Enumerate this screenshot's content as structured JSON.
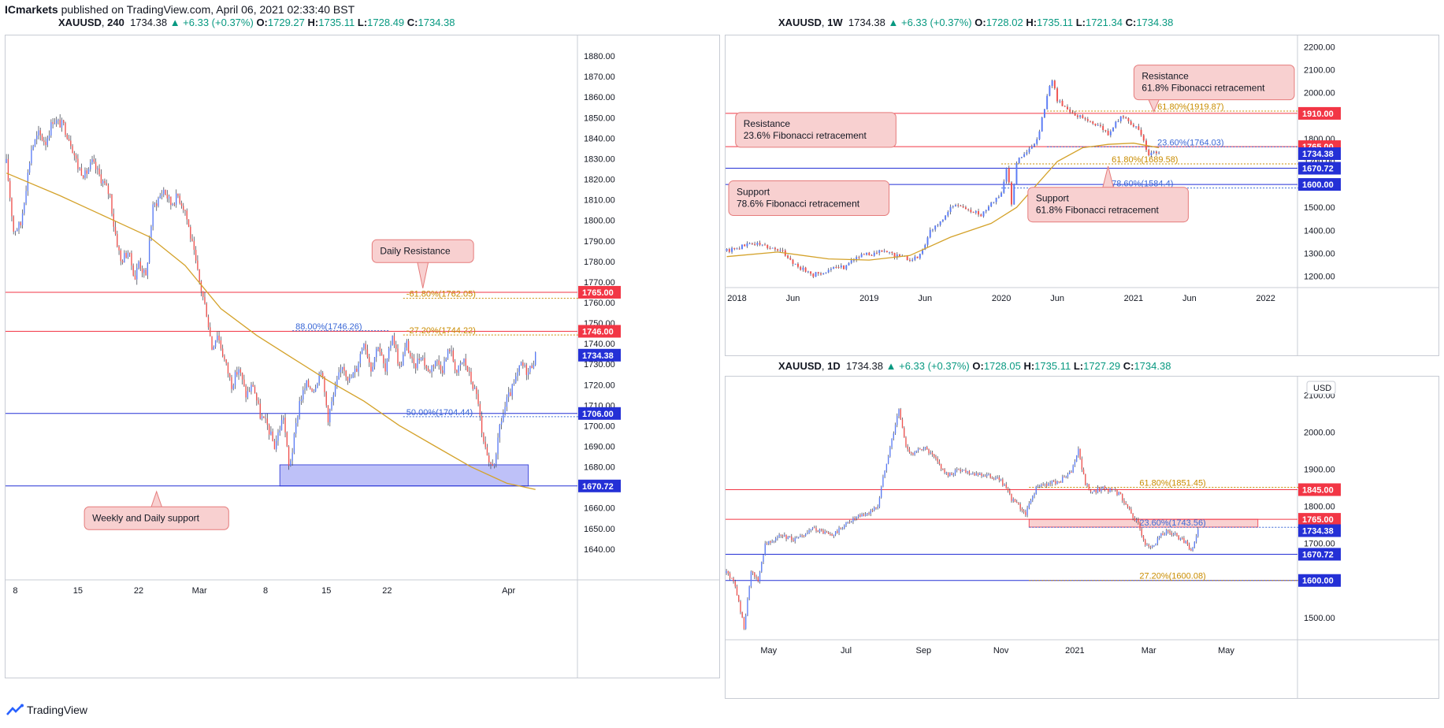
{
  "header": {
    "author": "ICmarkets",
    "text": " published on TradingView.com, April 06, 2021 02:33:40 BST"
  },
  "brand": {
    "name": "TradingView"
  },
  "colors": {
    "up": "#5b7cf5",
    "down": "#ef5350",
    "resistance": "#f23645",
    "support": "#2430d6",
    "ma": "#d4a22a",
    "fib_gold": "#c98c00",
    "fib_blue": "#3967d6",
    "callout_bg": "#f8d0d0",
    "callout_border": "#e57b7b",
    "zone": "#b3b7f7",
    "zone_red": "#f9c9c9",
    "last_price_bg": "#2430d6"
  },
  "chart_data": [
    {
      "id": "left",
      "type": "candlestick",
      "symbol": "XAUUSD",
      "timeframe": "240",
      "last": "1734.38",
      "change": "▲ +6.33 (+0.37%)",
      "ohlc": {
        "o": "1729.27",
        "h": "1735.11",
        "l": "1728.49",
        "c": "1734.38"
      },
      "ylim": [
        1625,
        1890
      ],
      "y_ticks": [
        "1880.00",
        "1870.00",
        "1860.00",
        "1850.00",
        "1840.00",
        "1830.00",
        "1820.00",
        "1810.00",
        "1800.00",
        "1790.00",
        "1780.00",
        "1770.00",
        "1760.00",
        "1750.00",
        "1740.00",
        "1730.00",
        "1720.00",
        "1710.00",
        "1700.00",
        "1690.00",
        "1680.00",
        "1670.00",
        "1660.00",
        "1650.00",
        "1640.00"
      ],
      "x_ticks": [
        {
          "label": "8",
          "i": 5
        },
        {
          "label": "15",
          "i": 40
        },
        {
          "label": "22",
          "i": 74
        },
        {
          "label": "Mar",
          "i": 108
        },
        {
          "label": "8",
          "i": 145
        },
        {
          "label": "15",
          "i": 179
        },
        {
          "label": "22",
          "i": 213
        },
        {
          "label": "Apr",
          "i": 281
        }
      ],
      "n_slots": 320,
      "path": [
        [
          0,
          1828
        ],
        [
          4,
          1795
        ],
        [
          8,
          1798
        ],
        [
          14,
          1835
        ],
        [
          18,
          1842
        ],
        [
          22,
          1838
        ],
        [
          26,
          1849
        ],
        [
          32,
          1846
        ],
        [
          36,
          1838
        ],
        [
          40,
          1826
        ],
        [
          44,
          1822
        ],
        [
          48,
          1828
        ],
        [
          52,
          1822
        ],
        [
          58,
          1812
        ],
        [
          60,
          1798
        ],
        [
          64,
          1780
        ],
        [
          68,
          1785
        ],
        [
          72,
          1772
        ],
        [
          74,
          1780
        ],
        [
          78,
          1772
        ],
        [
          80,
          1790
        ],
        [
          82,
          1806
        ],
        [
          88,
          1815
        ],
        [
          92,
          1808
        ],
        [
          96,
          1812
        ],
        [
          100,
          1805
        ],
        [
          104,
          1788
        ],
        [
          108,
          1770
        ],
        [
          112,
          1755
        ],
        [
          115,
          1738
        ],
        [
          118,
          1745
        ],
        [
          122,
          1732
        ],
        [
          126,
          1720
        ],
        [
          130,
          1728
        ],
        [
          134,
          1715
        ],
        [
          138,
          1720
        ],
        [
          142,
          1705
        ],
        [
          146,
          1700
        ],
        [
          150,
          1690
        ],
        [
          155,
          1705
        ],
        [
          158,
          1680
        ],
        [
          160,
          1688
        ],
        [
          164,
          1712
        ],
        [
          168,
          1720
        ],
        [
          172,
          1718
        ],
        [
          176,
          1728
        ],
        [
          180,
          1704
        ],
        [
          184,
          1718
        ],
        [
          188,
          1730
        ],
        [
          192,
          1722
        ],
        [
          196,
          1728
        ],
        [
          200,
          1742
        ],
        [
          204,
          1728
        ],
        [
          208,
          1740
        ],
        [
          212,
          1726
        ],
        [
          216,
          1745
        ],
        [
          220,
          1728
        ],
        [
          224,
          1740
        ],
        [
          228,
          1728
        ],
        [
          232,
          1735
        ],
        [
          236,
          1726
        ],
        [
          240,
          1732
        ],
        [
          244,
          1728
        ],
        [
          248,
          1738
        ],
        [
          252,
          1726
        ],
        [
          256,
          1732
        ],
        [
          260,
          1722
        ],
        [
          264,
          1712
        ],
        [
          266,
          1695
        ],
        [
          270,
          1680
        ],
        [
          274,
          1684
        ],
        [
          276,
          1700
        ],
        [
          280,
          1712
        ],
        [
          284,
          1720
        ],
        [
          288,
          1730
        ],
        [
          292,
          1726
        ],
        [
          296,
          1734
        ]
      ],
      "hlines": [
        {
          "price": 1765.0,
          "label": "1765.00",
          "kind": "resistance"
        },
        {
          "price": 1746.0,
          "label": "1746.00",
          "kind": "resistance"
        },
        {
          "price": 1706.0,
          "label": "1706.00",
          "kind": "support"
        },
        {
          "price": 1670.72,
          "label": "1670.72",
          "kind": "support"
        }
      ],
      "last_label": "1734.38",
      "fibs": [
        {
          "price": 1762.05,
          "text": "-61.80%(1762.05)",
          "color": "gold",
          "i0": 222,
          "i1": 320
        },
        {
          "price": 1746.26,
          "text": "88.00%(1746.26)",
          "color": "blue",
          "i0": 160,
          "i1": 214
        },
        {
          "price": 1744.22,
          "text": "-27.20%(1744.22)",
          "color": "gold",
          "i0": 222,
          "i1": 320
        },
        {
          "price": 1704.44,
          "text": "50.00%(1704.44)",
          "color": "blue",
          "i0": 222,
          "i1": 320
        }
      ],
      "ma": [
        [
          0,
          1823
        ],
        [
          30,
          1812
        ],
        [
          60,
          1800
        ],
        [
          80,
          1792
        ],
        [
          100,
          1778
        ],
        [
          120,
          1757
        ],
        [
          140,
          1744
        ],
        [
          160,
          1733
        ],
        [
          180,
          1722
        ],
        [
          200,
          1712
        ],
        [
          220,
          1700
        ],
        [
          240,
          1690
        ],
        [
          260,
          1680
        ],
        [
          280,
          1672
        ],
        [
          296,
          1669
        ]
      ],
      "zones": [
        {
          "i0": 153,
          "i1": 292,
          "p0": 1681,
          "p1": 1670.72,
          "kind": "blue"
        }
      ],
      "callouts": [
        {
          "text": "Daily Resistance",
          "i": 233,
          "price": 1785,
          "tip_price": 1767,
          "dir": "down"
        },
        {
          "text": "Weekly and Daily support",
          "i": 84,
          "price": 1655,
          "tip_price": 1668,
          "dir": "up"
        }
      ]
    },
    {
      "id": "top-right",
      "type": "candlestick",
      "symbol": "XAUUSD",
      "timeframe": "1W",
      "last": "1734.38",
      "change": "▲ +6.33 (+0.37%)",
      "ohlc": {
        "o": "1728.02",
        "h": "1735.11",
        "l": "1721.34",
        "c": "1734.38"
      },
      "ylim": [
        1150,
        2250
      ],
      "y_ticks": [
        "2200.00",
        "2100.00",
        "2000.00",
        "1900.00",
        "1800.00",
        "1700.00",
        "1600.00",
        "1500.00",
        "1400.00",
        "1300.00",
        "1200.00"
      ],
      "x_ticks": [
        {
          "label": "2018",
          "i": 4
        },
        {
          "label": "Jun",
          "i": 26
        },
        {
          "label": "2019",
          "i": 56
        },
        {
          "label": "Jun",
          "i": 78
        },
        {
          "label": "2020",
          "i": 108
        },
        {
          "label": "Jun",
          "i": 130
        },
        {
          "label": "2021",
          "i": 160
        },
        {
          "label": "Jun",
          "i": 182
        },
        {
          "label": "2022",
          "i": 212
        }
      ],
      "n_slots": 225,
      "path": [
        [
          0,
          1310
        ],
        [
          6,
          1330
        ],
        [
          10,
          1345
        ],
        [
          16,
          1330
        ],
        [
          22,
          1305
        ],
        [
          28,
          1240
        ],
        [
          34,
          1205
        ],
        [
          40,
          1225
        ],
        [
          46,
          1240
        ],
        [
          50,
          1280
        ],
        [
          56,
          1295
        ],
        [
          62,
          1310
        ],
        [
          66,
          1290
        ],
        [
          72,
          1275
        ],
        [
          76,
          1290
        ],
        [
          80,
          1400
        ],
        [
          84,
          1430
        ],
        [
          88,
          1500
        ],
        [
          92,
          1510
        ],
        [
          96,
          1480
        ],
        [
          100,
          1470
        ],
        [
          104,
          1520
        ],
        [
          108,
          1560
        ],
        [
          110,
          1680
        ],
        [
          112,
          1520
        ],
        [
          114,
          1700
        ],
        [
          118,
          1740
        ],
        [
          122,
          1790
        ],
        [
          126,
          1980
        ],
        [
          128,
          2060
        ],
        [
          130,
          1970
        ],
        [
          134,
          1930
        ],
        [
          138,
          1900
        ],
        [
          142,
          1880
        ],
        [
          146,
          1860
        ],
        [
          150,
          1820
        ],
        [
          154,
          1880
        ],
        [
          156,
          1900
        ],
        [
          160,
          1860
        ],
        [
          162,
          1830
        ],
        [
          164,
          1800
        ],
        [
          166,
          1720
        ],
        [
          168,
          1740
        ],
        [
          170,
          1734
        ]
      ],
      "hlines": [
        {
          "price": 1910.0,
          "label": "1910.00",
          "kind": "resistance"
        },
        {
          "price": 1765.0,
          "label": "1765.00",
          "kind": "resistance"
        },
        {
          "price": 1670.72,
          "label": "1670.72",
          "kind": "support"
        },
        {
          "price": 1600.0,
          "label": "1600.00",
          "kind": "support"
        }
      ],
      "last_label": "1734.38",
      "fibs": [
        {
          "price": 1919.87,
          "text": "61.80%(1919.87)",
          "color": "gold",
          "i0": 126,
          "i1": 225
        },
        {
          "price": 1764.03,
          "text": "23.60%(1764.03)",
          "color": "blue",
          "i0": 126,
          "i1": 225
        },
        {
          "price": 1689.58,
          "text": "61.80%(1689.58)",
          "color": "gold",
          "i0": 108,
          "i1": 225
        },
        {
          "price": 1584.4,
          "text": "78.60%(1584.4)",
          "color": "blue",
          "i0": 108,
          "i1": 225
        }
      ],
      "ma": [
        [
          0,
          1285
        ],
        [
          20,
          1305
        ],
        [
          40,
          1275
        ],
        [
          56,
          1270
        ],
        [
          72,
          1290
        ],
        [
          88,
          1370
        ],
        [
          104,
          1430
        ],
        [
          114,
          1500
        ],
        [
          122,
          1600
        ],
        [
          130,
          1700
        ],
        [
          140,
          1760
        ],
        [
          150,
          1775
        ],
        [
          160,
          1780
        ],
        [
          170,
          1760
        ]
      ],
      "zones": [],
      "callouts": [
        {
          "text": "Resistance|61.8% Fibonacci retracement",
          "i": 196,
          "price": 2045,
          "tip_price": 1918,
          "tip_i": 168,
          "dir": "down-left"
        },
        {
          "text": "Resistance|23.6% Fibonacci retracement",
          "i": 35,
          "price": 1838,
          "tip_price": 1768,
          "tip_i": 28,
          "dir": "down"
        },
        {
          "text": "Support|78.6% Fibonacci retracement",
          "i": 20,
          "price": 1540,
          "tip_price": 1610,
          "tip_i": 20,
          "dir": "up"
        },
        {
          "text": "Support|61.8% Fibonacci retracement",
          "i": 150,
          "price": 1512,
          "tip_price": 1680,
          "tip_i": 150,
          "dir": "up"
        }
      ]
    },
    {
      "id": "bottom-right",
      "type": "candlestick",
      "symbol": "XAUUSD",
      "timeframe": "1D",
      "last": "1734.38",
      "change": "▲ +6.33 (+0.37%)",
      "ohlc": {
        "o": "1728.05",
        "h": "1735.11",
        "l": "1727.29",
        "c": "1734.38"
      },
      "ylim": [
        1440,
        2150
      ],
      "y_ticks": [
        "2100.00",
        "2000.00",
        "1900.00",
        "1800.00",
        "1700.00",
        "1600.00",
        "1500.00"
      ],
      "unit": "USD",
      "x_ticks": [
        {
          "label": "May",
          "i": 24
        },
        {
          "label": "Jul",
          "i": 68
        },
        {
          "label": "Sep",
          "i": 112
        },
        {
          "label": "Nov",
          "i": 156
        },
        {
          "label": "2021",
          "i": 198
        },
        {
          "label": "Mar",
          "i": 240
        },
        {
          "label": "May",
          "i": 284
        }
      ],
      "n_slots": 325,
      "path": [
        [
          0,
          1620
        ],
        [
          4,
          1600
        ],
        [
          8,
          1520
        ],
        [
          10,
          1470
        ],
        [
          14,
          1620
        ],
        [
          18,
          1600
        ],
        [
          22,
          1700
        ],
        [
          30,
          1720
        ],
        [
          40,
          1710
        ],
        [
          50,
          1740
        ],
        [
          60,
          1720
        ],
        [
          70,
          1760
        ],
        [
          80,
          1780
        ],
        [
          86,
          1800
        ],
        [
          90,
          1900
        ],
        [
          96,
          2020
        ],
        [
          98,
          2060
        ],
        [
          102,
          1960
        ],
        [
          106,
          1940
        ],
        [
          112,
          1960
        ],
        [
          118,
          1930
        ],
        [
          126,
          1880
        ],
        [
          132,
          1900
        ],
        [
          140,
          1890
        ],
        [
          150,
          1880
        ],
        [
          156,
          1870
        ],
        [
          162,
          1820
        ],
        [
          166,
          1800
        ],
        [
          170,
          1780
        ],
        [
          176,
          1850
        ],
        [
          182,
          1860
        ],
        [
          190,
          1870
        ],
        [
          196,
          1890
        ],
        [
          200,
          1950
        ],
        [
          204,
          1860
        ],
        [
          208,
          1840
        ],
        [
          214,
          1850
        ],
        [
          220,
          1840
        ],
        [
          224,
          1830
        ],
        [
          230,
          1780
        ],
        [
          234,
          1750
        ],
        [
          238,
          1700
        ],
        [
          242,
          1690
        ],
        [
          246,
          1720
        ],
        [
          250,
          1730
        ],
        [
          256,
          1720
        ],
        [
          262,
          1700
        ],
        [
          264,
          1680
        ],
        [
          268,
          1734
        ]
      ],
      "hlines": [
        {
          "price": 1845.0,
          "label": "1845.00",
          "kind": "resistance"
        },
        {
          "price": 1765.0,
          "label": "1765.00",
          "kind": "resistance"
        },
        {
          "price": 1670.72,
          "label": "1670.72",
          "kind": "support"
        },
        {
          "price": 1600.0,
          "label": "1600.00",
          "kind": "support"
        }
      ],
      "last_label": "1734.38",
      "fibs": [
        {
          "price": 1851.45,
          "text": "61.80%(1851.45)",
          "color": "gold",
          "i0": 172,
          "i1": 325
        },
        {
          "price": 1743.56,
          "text": "23.60%(1743.56)",
          "color": "blue",
          "i0": 172,
          "i1": 325
        },
        {
          "price": 1600.08,
          "text": "27.20%(1600.08)",
          "color": "gold",
          "i0": 172,
          "i1": 325
        }
      ],
      "ma": [],
      "zones": [
        {
          "i0": 172,
          "i1": 302,
          "p0": 1765,
          "p1": 1744,
          "kind": "red"
        }
      ],
      "callouts": []
    }
  ]
}
